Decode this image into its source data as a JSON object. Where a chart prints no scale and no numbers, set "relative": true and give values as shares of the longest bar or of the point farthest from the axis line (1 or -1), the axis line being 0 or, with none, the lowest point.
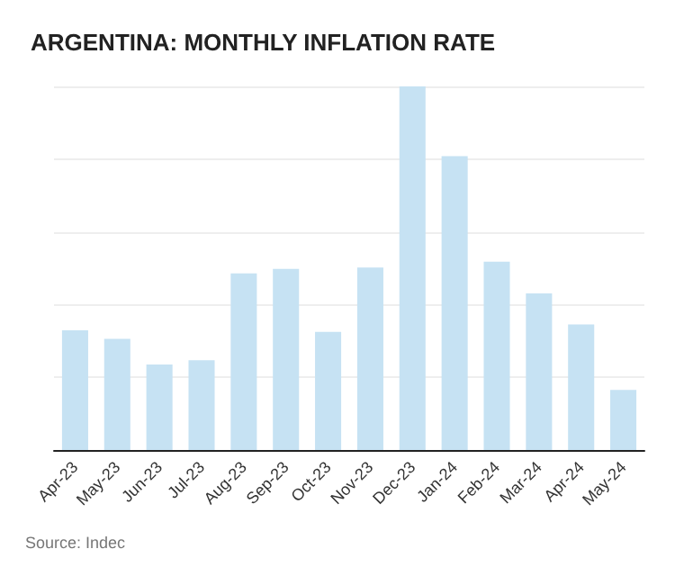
{
  "chart_data": {
    "type": "bar",
    "title": "ARGENTINA: MONTHLY INFLATION RATE",
    "categories": [
      "Apr-23",
      "May-23",
      "Jun-23",
      "Jul-23",
      "Aug-23",
      "Sep-23",
      "Oct-23",
      "Nov-23",
      "Dec-23",
      "Jan-24",
      "Feb-24",
      "Mar-24",
      "Apr-24",
      "May-24"
    ],
    "values": [
      0.329,
      0.306,
      0.235,
      0.247,
      0.486,
      0.498,
      0.325,
      0.502,
      1,
      0.808,
      0.518,
      0.431,
      0.345,
      0.165
    ],
    "color": "#c6e2f3",
    "relative": true,
    "grid": "y",
    "annotations": [
      "Source: Indec"
    ]
  }
}
